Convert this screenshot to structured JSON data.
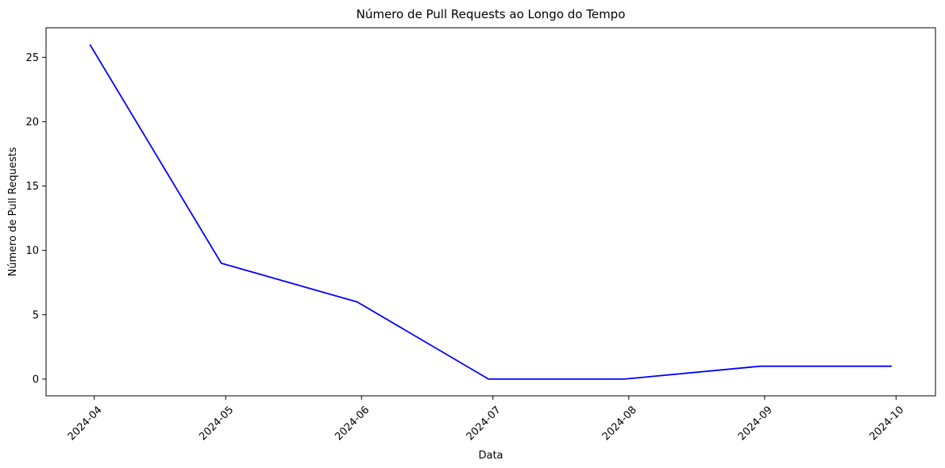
{
  "chart_data": {
    "type": "line",
    "title": "Número de Pull Requests ao Longo do Tempo",
    "xlabel": "Data",
    "ylabel": "Número de Pull Requests",
    "x": [
      "2024-03-31",
      "2024-04-30",
      "2024-05-31",
      "2024-06-30",
      "2024-07-31",
      "2024-08-31",
      "2024-09-30"
    ],
    "series": [
      {
        "values": [
          26,
          9,
          6,
          0,
          0,
          1,
          1
        ],
        "color": "#0000ff"
      }
    ],
    "x_ticks": [
      "2024-04",
      "2024-05",
      "2024-06",
      "2024-07",
      "2024-08",
      "2024-09",
      "2024-10"
    ],
    "x_tick_dates": [
      "2024-04-01",
      "2024-05-01",
      "2024-06-01",
      "2024-07-01",
      "2024-08-01",
      "2024-09-01",
      "2024-10-01"
    ],
    "x_tick_rotation": "45",
    "xlim": [
      "2024-03-21",
      "2024-10-10"
    ],
    "y_ticks": [
      0,
      5,
      10,
      15,
      20,
      25
    ],
    "ylim": [
      -1.3,
      27.3
    ],
    "grid": false,
    "legend": "none"
  }
}
